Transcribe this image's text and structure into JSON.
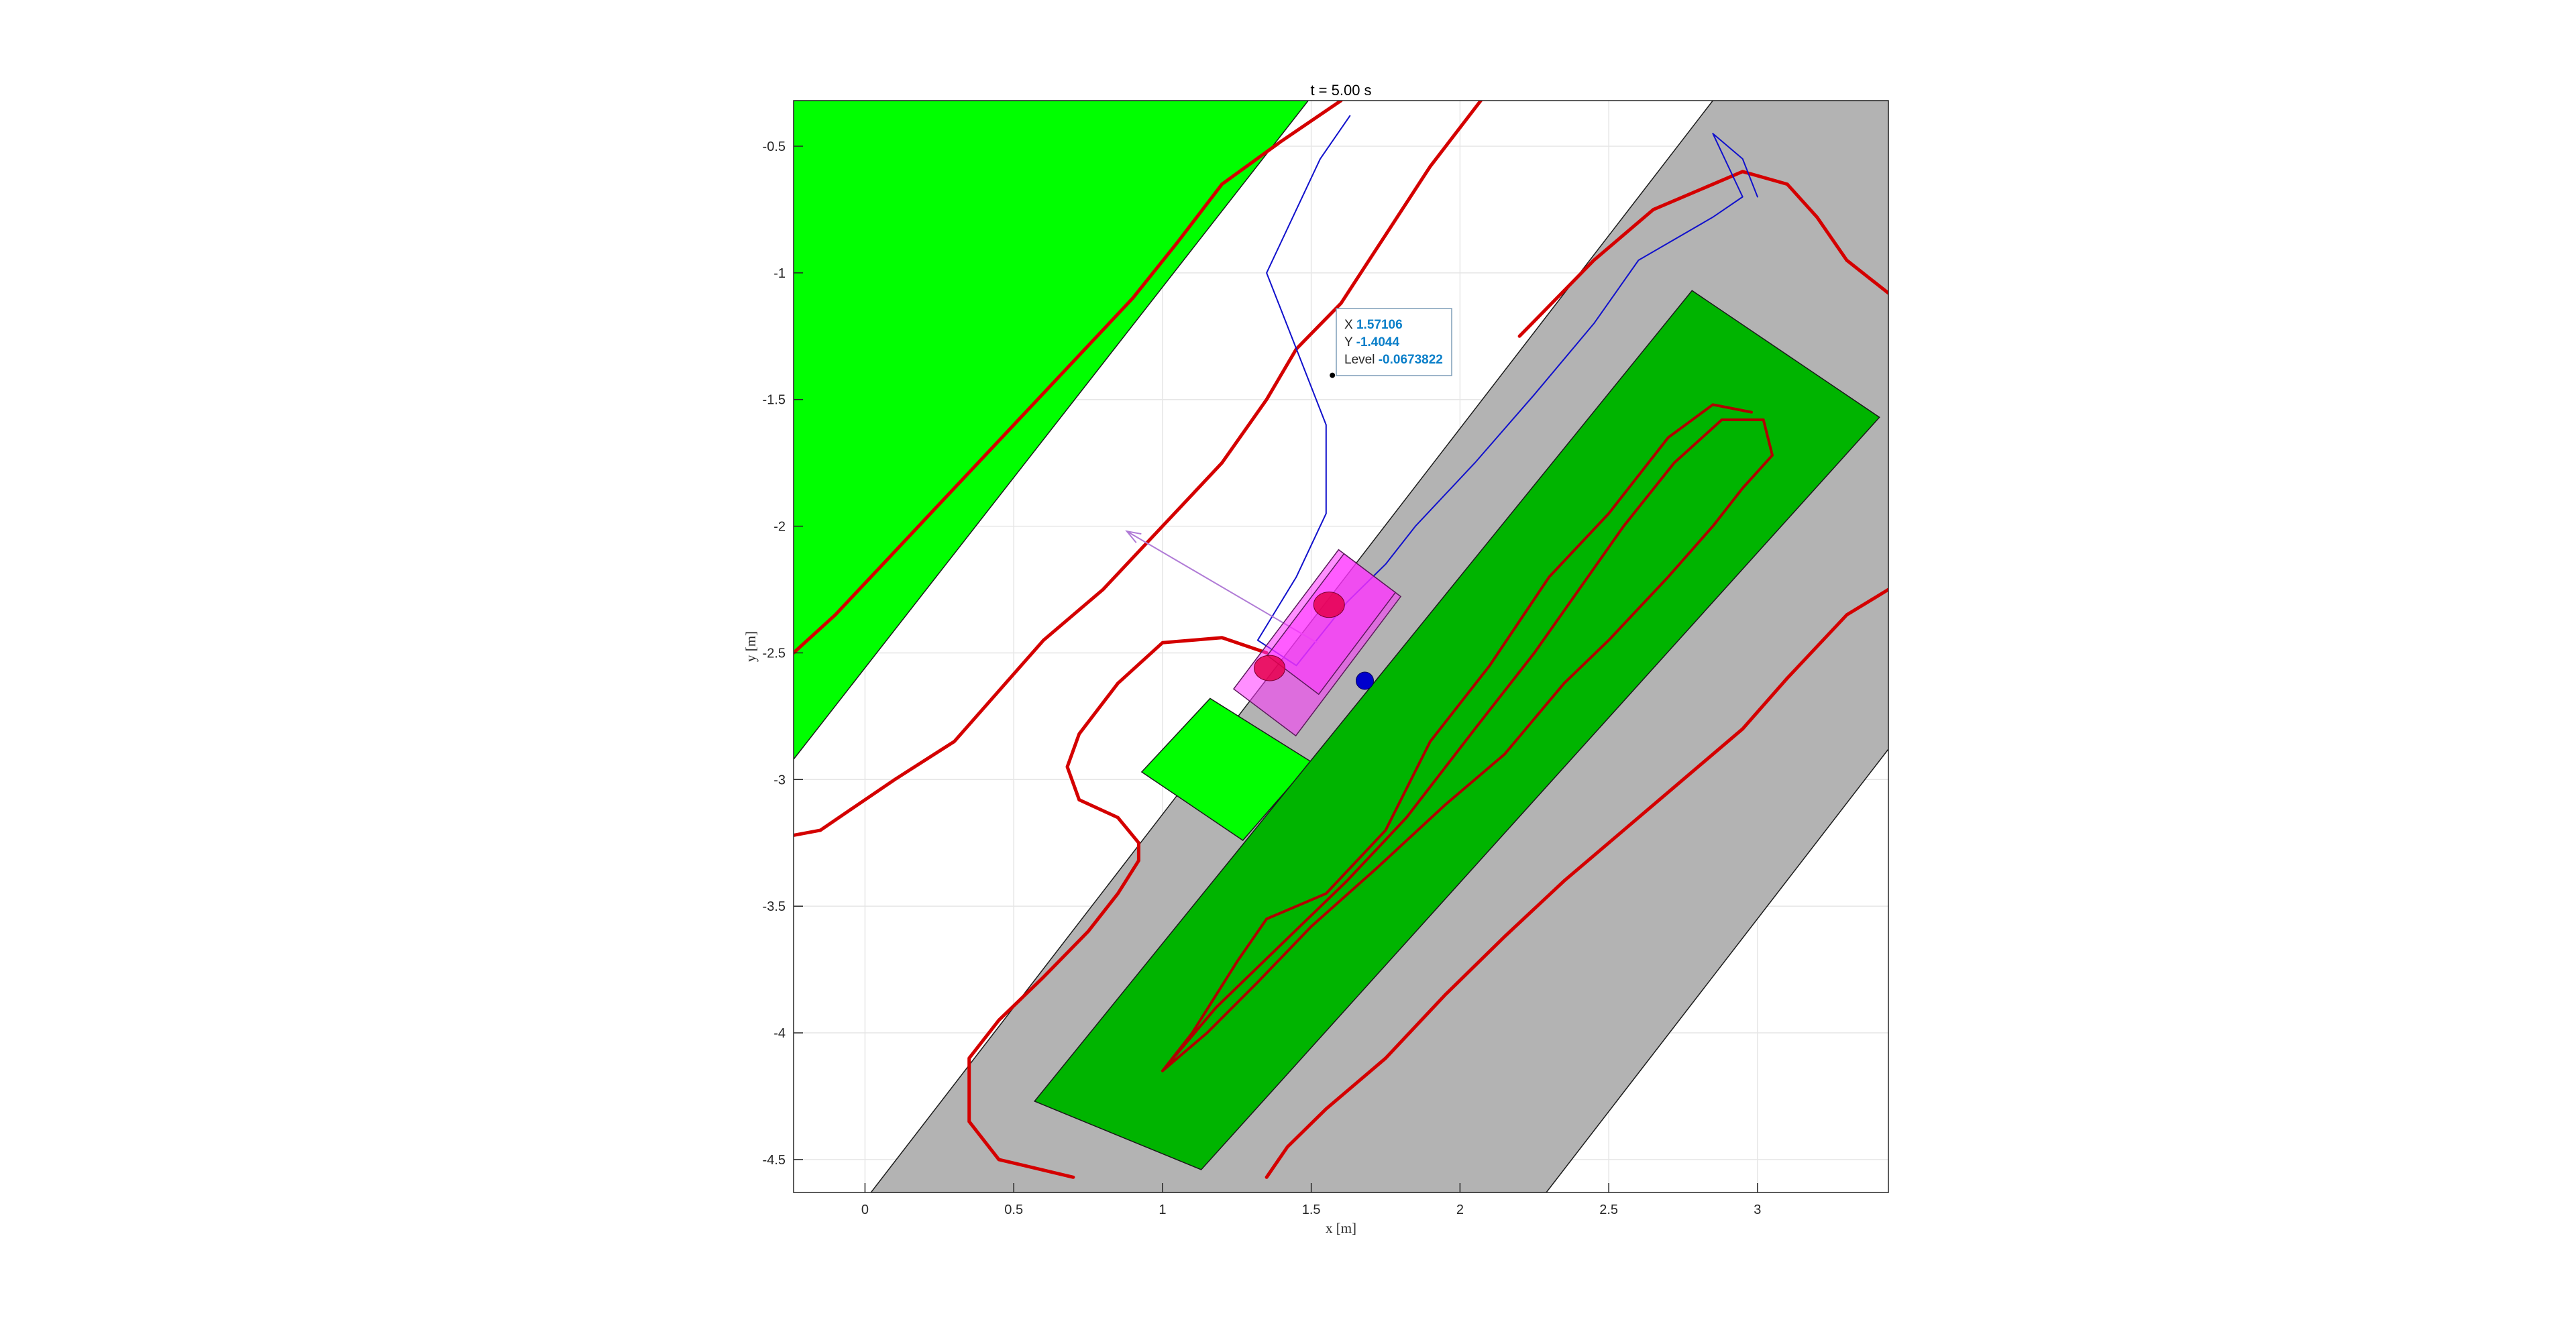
{
  "chart_data": {
    "type": "scatter",
    "title": "t = 5.00 s",
    "xlabel": "x [m]",
    "ylabel": "y [m]",
    "xlim": [
      -0.24,
      3.44
    ],
    "ylim": [
      -4.63,
      -0.32
    ],
    "grid": true,
    "x_ticks": [
      0,
      0.5,
      1,
      1.5,
      2,
      2.5,
      3
    ],
    "x_tick_labels": [
      "0",
      "0.5",
      "1",
      "1.5",
      "2",
      "2.5",
      "3"
    ],
    "y_ticks": [
      -0.5,
      -1,
      -1.5,
      -2,
      -2.5,
      -3,
      -3.5,
      -4,
      -4.5
    ],
    "y_tick_labels": [
      "-0.5",
      "-1",
      "-1.5",
      "-2",
      "-2.5",
      "-3",
      "-3.5",
      "-4",
      "-4.5"
    ],
    "colors": {
      "green_region": "#00ff00",
      "dark_green_region": "#00b400",
      "gray_region": "#b3b3b3",
      "red_contour": "#d40000",
      "dark_red_contour": "#b00000",
      "blue_path": "#1010cc",
      "vehicle": "#ff33ff",
      "wheel": "#e6004c",
      "arrow": "#b07bd6",
      "marker": "#0000cc"
    },
    "regions": [
      {
        "name": "green-left",
        "color": "#00ff00",
        "points": [
          [
            -0.24,
            -0.32
          ],
          [
            1.49,
            -0.32
          ],
          [
            -0.24,
            -2.92
          ]
        ]
      },
      {
        "name": "gray-strip",
        "color": "#b3b3b3",
        "points": [
          [
            2.85,
            -0.32
          ],
          [
            3.44,
            -0.32
          ],
          [
            3.44,
            -2.88
          ],
          [
            2.29,
            -4.63
          ],
          [
            0.02,
            -4.63
          ]
        ]
      },
      {
        "name": "green-small",
        "color": "#00ff00",
        "points": [
          [
            1.16,
            -2.68
          ],
          [
            1.5,
            -2.93
          ],
          [
            1.27,
            -3.24
          ],
          [
            0.93,
            -2.97
          ]
        ]
      },
      {
        "name": "dark-green-rect",
        "color": "#00b400",
        "points": [
          [
            2.78,
            -1.07
          ],
          [
            3.41,
            -1.57
          ],
          [
            1.13,
            -4.54
          ],
          [
            0.57,
            -4.27
          ]
        ]
      }
    ],
    "series": [
      {
        "name": "",
        "color": "#d40000",
        "width": 5,
        "points": [
          [
            -0.24,
            -2.5
          ],
          [
            -0.1,
            -2.35
          ],
          [
            0.1,
            -2.1
          ],
          [
            0.3,
            -1.85
          ],
          [
            0.5,
            -1.6
          ],
          [
            0.7,
            -1.35
          ],
          [
            0.9,
            -1.1
          ],
          [
            1.05,
            -0.88
          ],
          [
            1.2,
            -0.65
          ],
          [
            1.4,
            -0.48
          ],
          [
            1.6,
            -0.32
          ]
        ]
      },
      {
        "name": "",
        "color": "#d40000",
        "width": 5,
        "points": [
          [
            -0.24,
            -3.22
          ],
          [
            -0.15,
            -3.2
          ],
          [
            -0.05,
            -3.12
          ],
          [
            0.1,
            -3.0
          ],
          [
            0.3,
            -2.85
          ],
          [
            0.45,
            -2.65
          ],
          [
            0.6,
            -2.45
          ],
          [
            0.8,
            -2.25
          ],
          [
            1.0,
            -2.0
          ],
          [
            1.2,
            -1.75
          ],
          [
            1.35,
            -1.5
          ],
          [
            1.45,
            -1.3
          ],
          [
            1.6,
            -1.12
          ],
          [
            1.75,
            -0.85
          ],
          [
            1.9,
            -0.58
          ],
          [
            2.07,
            -0.32
          ]
        ]
      },
      {
        "name": "",
        "color": "#d40000",
        "width": 5,
        "points": [
          [
            1.35,
            -2.5
          ],
          [
            1.2,
            -2.44
          ],
          [
            1.0,
            -2.46
          ],
          [
            0.85,
            -2.62
          ],
          [
            0.72,
            -2.82
          ],
          [
            0.68,
            -2.95
          ],
          [
            0.72,
            -3.08
          ],
          [
            0.85,
            -3.15
          ],
          [
            0.92,
            -3.25
          ],
          [
            0.92,
            -3.32
          ],
          [
            0.85,
            -3.45
          ],
          [
            0.75,
            -3.6
          ],
          [
            0.6,
            -3.78
          ],
          [
            0.45,
            -3.95
          ],
          [
            0.35,
            -4.1
          ],
          [
            0.35,
            -4.35
          ],
          [
            0.45,
            -4.5
          ],
          [
            0.7,
            -4.57
          ]
        ]
      },
      {
        "name": "",
        "color": "#d40000",
        "width": 5,
        "points": [
          [
            2.2,
            -1.25
          ],
          [
            2.45,
            -0.95
          ],
          [
            2.65,
            -0.75
          ],
          [
            2.95,
            -0.6
          ],
          [
            3.1,
            -0.65
          ],
          [
            3.2,
            -0.78
          ],
          [
            3.3,
            -0.95
          ],
          [
            3.44,
            -1.08
          ]
        ]
      },
      {
        "name": "",
        "color": "#d40000",
        "width": 5,
        "points": [
          [
            3.44,
            -2.25
          ],
          [
            3.3,
            -2.35
          ],
          [
            3.1,
            -2.6
          ],
          [
            2.95,
            -2.8
          ],
          [
            2.75,
            -3.0
          ],
          [
            2.55,
            -3.2
          ],
          [
            2.35,
            -3.4
          ],
          [
            2.15,
            -3.62
          ],
          [
            1.95,
            -3.85
          ],
          [
            1.75,
            -4.1
          ],
          [
            1.55,
            -4.3
          ],
          [
            1.42,
            -4.45
          ],
          [
            1.35,
            -4.57
          ]
        ]
      },
      {
        "name": "",
        "color": "#b00000",
        "width": 4,
        "points": [
          [
            1.0,
            -4.15
          ],
          [
            1.18,
            -3.9
          ],
          [
            1.4,
            -3.65
          ],
          [
            1.62,
            -3.4
          ],
          [
            1.82,
            -3.15
          ],
          [
            2.05,
            -2.8
          ],
          [
            2.25,
            -2.5
          ],
          [
            2.4,
            -2.25
          ],
          [
            2.55,
            -2.0
          ],
          [
            2.72,
            -1.75
          ],
          [
            2.88,
            -1.58
          ],
          [
            3.02,
            -1.58
          ],
          [
            3.05,
            -1.72
          ],
          [
            2.95,
            -1.85
          ],
          [
            2.85,
            -2.0
          ],
          [
            2.7,
            -2.2
          ],
          [
            2.5,
            -2.45
          ],
          [
            2.35,
            -2.62
          ],
          [
            2.15,
            -2.9
          ],
          [
            1.95,
            -3.1
          ],
          [
            1.72,
            -3.35
          ],
          [
            1.5,
            -3.58
          ],
          [
            1.32,
            -3.8
          ],
          [
            1.15,
            -4.0
          ],
          [
            1.0,
            -4.15
          ],
          [
            1.1,
            -4.0
          ],
          [
            1.25,
            -3.72
          ],
          [
            1.35,
            -3.55
          ],
          [
            1.55,
            -3.45
          ],
          [
            1.75,
            -3.2
          ],
          [
            1.9,
            -2.85
          ],
          [
            2.1,
            -2.55
          ],
          [
            2.3,
            -2.2
          ],
          [
            2.5,
            -1.95
          ],
          [
            2.7,
            -1.65
          ],
          [
            2.85,
            -1.52
          ],
          [
            2.98,
            -1.55
          ]
        ]
      },
      {
        "name": "",
        "color": "#1010cc",
        "width": 2,
        "points": [
          [
            1.63,
            -0.38
          ],
          [
            1.53,
            -0.55
          ],
          [
            1.45,
            -0.75
          ],
          [
            1.35,
            -1.0
          ],
          [
            1.45,
            -1.3
          ],
          [
            1.55,
            -1.6
          ],
          [
            1.55,
            -1.95
          ],
          [
            1.45,
            -2.2
          ],
          [
            1.32,
            -2.45
          ],
          [
            1.45,
            -2.55
          ],
          [
            1.62,
            -2.3
          ],
          [
            1.75,
            -2.15
          ],
          [
            1.85,
            -2.0
          ],
          [
            2.05,
            -1.75
          ],
          [
            2.25,
            -1.48
          ],
          [
            2.45,
            -1.2
          ],
          [
            2.6,
            -0.95
          ],
          [
            2.85,
            -0.78
          ],
          [
            2.95,
            -0.7
          ],
          [
            2.85,
            -0.45
          ],
          [
            2.95,
            -0.55
          ],
          [
            3.0,
            -0.7
          ]
        ]
      }
    ],
    "vehicle": {
      "center": [
        1.52,
        -2.46
      ],
      "heading_deg": 53
    },
    "wheels": [
      [
        1.36,
        -2.56
      ],
      [
        1.56,
        -2.31
      ]
    ],
    "marker": [
      1.68,
      -2.61
    ],
    "arrow": {
      "from": [
        1.52,
        -2.46
      ],
      "to": [
        0.88,
        -2.02
      ]
    },
    "datatip": {
      "point": [
        1.57106,
        -1.4044
      ],
      "x_label": "X",
      "x_value": "1.57106",
      "y_label": "Y",
      "y_value": "-1.4044",
      "level_label": "Level",
      "level_value": "-0.0673822"
    }
  }
}
